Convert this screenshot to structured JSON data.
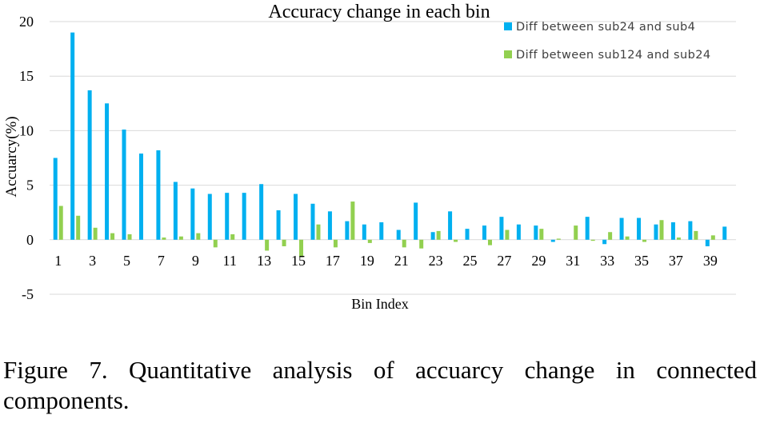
{
  "chart_data": {
    "type": "bar",
    "title": "Accuracy change in each bin",
    "xlabel": "Bin Index",
    "ylabel": "Accuarcy(%)",
    "ylim": [
      -5,
      20
    ],
    "yticks": [
      -5,
      0,
      5,
      10,
      15,
      20
    ],
    "grid": true,
    "legend_position": "top-right",
    "categories": [
      1,
      2,
      3,
      4,
      5,
      6,
      7,
      8,
      9,
      10,
      11,
      12,
      13,
      14,
      15,
      16,
      17,
      18,
      19,
      20,
      21,
      22,
      23,
      24,
      25,
      26,
      27,
      28,
      29,
      30,
      31,
      32,
      33,
      34,
      35,
      36,
      37,
      38,
      39,
      40
    ],
    "xtick_labels": [
      "1",
      "3",
      "5",
      "7",
      "9",
      "11",
      "13",
      "15",
      "17",
      "19",
      "21",
      "23",
      "25",
      "27",
      "29",
      "31",
      "33",
      "35",
      "37",
      "39"
    ],
    "series": [
      {
        "name": "Diff between sub24 and sub4",
        "color": "#00b0f0",
        "values": [
          7.5,
          19.0,
          13.7,
          12.5,
          10.1,
          7.9,
          8.2,
          5.3,
          4.7,
          4.2,
          4.3,
          4.3,
          5.1,
          2.7,
          4.2,
          3.3,
          2.6,
          1.7,
          1.4,
          1.6,
          0.9,
          3.4,
          0.7,
          2.6,
          1.0,
          1.3,
          2.1,
          1.4,
          1.3,
          -0.2,
          0.0,
          2.1,
          -0.4,
          2.0,
          2.0,
          1.4,
          1.6,
          1.7,
          -0.6,
          1.2
        ]
      },
      {
        "name": "Diff between sub124 and sub24",
        "color": "#92d050",
        "values": [
          3.1,
          2.2,
          1.1,
          0.6,
          0.5,
          0.0,
          0.2,
          0.3,
          0.6,
          -0.7,
          0.5,
          0.0,
          -1.0,
          -0.6,
          -1.6,
          1.4,
          -0.7,
          3.5,
          -0.3,
          0.0,
          -0.7,
          -0.8,
          0.8,
          -0.2,
          0.0,
          -0.5,
          0.9,
          0.0,
          1.0,
          0.1,
          1.3,
          -0.1,
          0.7,
          0.3,
          -0.2,
          1.8,
          0.2,
          0.8,
          0.4,
          0.0
        ]
      }
    ]
  },
  "caption": "Figure 7. Quantitative analysis of accuarcy change in connected components."
}
